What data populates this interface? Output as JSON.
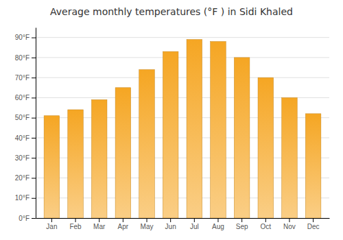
{
  "chart_data": {
    "type": "bar",
    "title": "Average monthly temperatures (°F ) in Sidi Khaled",
    "categories": [
      "Jan",
      "Feb",
      "Mar",
      "Apr",
      "May",
      "Jun",
      "Jul",
      "Aug",
      "Sep",
      "Oct",
      "Nov",
      "Dec"
    ],
    "values": [
      51,
      54,
      59,
      65,
      74,
      83,
      89,
      88,
      80,
      70,
      60,
      52
    ],
    "color": "#F5A623",
    "ylim": [
      0,
      95
    ],
    "yticks": [
      {
        "value": 0,
        "label": "0°F"
      },
      {
        "value": 10,
        "label": "10°F"
      },
      {
        "value": 20,
        "label": "20°F"
      },
      {
        "value": 30,
        "label": "30°F"
      },
      {
        "value": 40,
        "label": "40°F"
      },
      {
        "value": 50,
        "label": "50°F"
      },
      {
        "value": 60,
        "label": "60°F"
      },
      {
        "value": 70,
        "label": "70°F"
      },
      {
        "value": 80,
        "label": "80°F"
      },
      {
        "value": 90,
        "label": "90°F"
      }
    ],
    "grid": true
  }
}
